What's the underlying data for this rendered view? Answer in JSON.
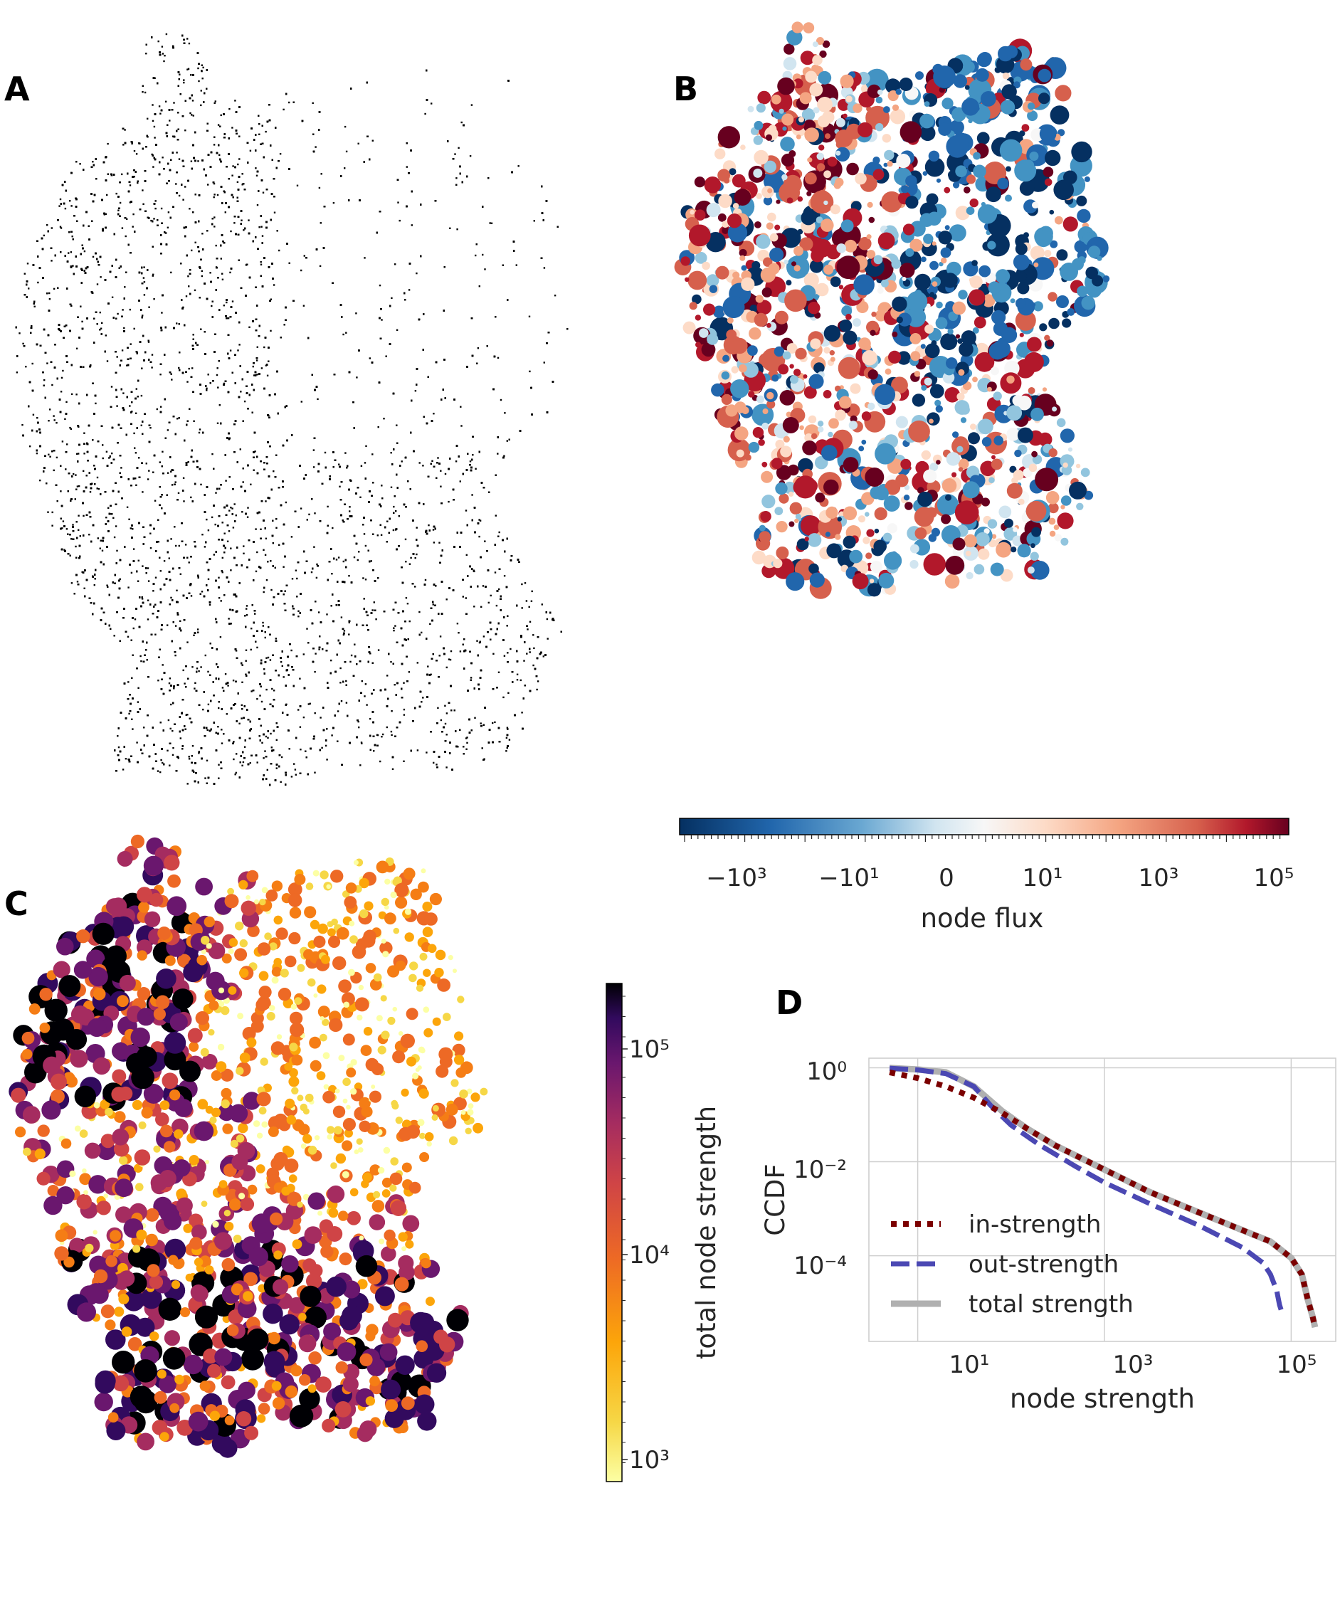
{
  "panels": {
    "a_label": "A",
    "b_label": "B",
    "c_label": "C",
    "d_label": "D"
  },
  "colors": {
    "map_a_dots": "#000000",
    "flux_negative": "#2166ac",
    "flux_zero": "#f7f7f7",
    "flux_positive": "#b2182b",
    "strength_low": "#fcffa4",
    "strength_mid": "#ed6925",
    "strength_high": "#000004",
    "in_strength": "#7b0000",
    "out_strength": "#4b48b3",
    "total_strength": "#b0b0b0",
    "grid": "#cfcfcf"
  },
  "colorbar_b": {
    "tick_labels": [
      "−10³",
      "−10¹",
      "0",
      "10¹",
      "10³",
      "10⁵"
    ],
    "label": "node flux",
    "scale": "symlog"
  },
  "colorbar_c": {
    "tick_labels": [
      "10³",
      "10⁴",
      "10⁵"
    ],
    "label": "total node strength",
    "scale": "log",
    "range": [
      500,
      200000
    ]
  },
  "chart_data": [
    {
      "panel": "A",
      "type": "scatter",
      "title": "",
      "description": "dense point map of network nodes"
    },
    {
      "panel": "B",
      "type": "scatter",
      "title": "",
      "color_variable": "node flux"
    },
    {
      "panel": "C",
      "type": "scatter",
      "title": "",
      "color_variable": "total node strength"
    },
    {
      "panel": "D",
      "type": "line",
      "title": "",
      "xlabel": "node strength",
      "ylabel": "CCDF",
      "xscale": "log",
      "yscale": "log",
      "xlim": [
        3,
        300000
      ],
      "ylim": [
        1.5e-06,
        1.6
      ],
      "xticks": [
        "10¹",
        "10³",
        "10⁵"
      ],
      "yticks": [
        "10⁰",
        "10⁻²",
        "10⁻⁴"
      ],
      "grid": true,
      "legend_position": "lower-left",
      "series": [
        {
          "name": "in-strength",
          "style": "dotted",
          "x": [
            5,
            10,
            20,
            40,
            80,
            150,
            300,
            1000,
            3000,
            10000,
            30000,
            60000,
            100000,
            130000,
            150000,
            170000,
            180000
          ],
          "y": [
            0.8,
            0.6,
            0.4,
            0.23,
            0.11,
            0.05,
            0.022,
            0.0068,
            0.0023,
            0.00085,
            0.00035,
            0.0002,
            9e-05,
            4e-05,
            1.2e-05,
            5e-06,
            3e-06
          ]
        },
        {
          "name": "out-strength",
          "style": "dashed",
          "x": [
            5,
            10,
            20,
            40,
            60,
            100,
            200,
            500,
            1000,
            3000,
            10000,
            30000,
            50000,
            60000,
            70000,
            75000,
            80000
          ],
          "y": [
            0.98,
            0.9,
            0.75,
            0.4,
            0.16,
            0.06,
            0.023,
            0.0078,
            0.0036,
            0.0013,
            0.00045,
            0.00015,
            7e-05,
            4e-05,
            1.8e-05,
            9e-06,
            6e-06
          ]
        },
        {
          "name": "total strength",
          "style": "solid",
          "x": [
            5,
            10,
            20,
            40,
            80,
            150,
            300,
            1000,
            3000,
            10000,
            30000,
            60000,
            100000,
            130000,
            150000,
            170000,
            180000
          ],
          "y": [
            0.99,
            0.92,
            0.8,
            0.4,
            0.12,
            0.05,
            0.022,
            0.0068,
            0.0023,
            0.00085,
            0.00035,
            0.0002,
            9e-05,
            4e-05,
            1.2e-05,
            5e-06,
            3e-06
          ]
        }
      ]
    }
  ]
}
